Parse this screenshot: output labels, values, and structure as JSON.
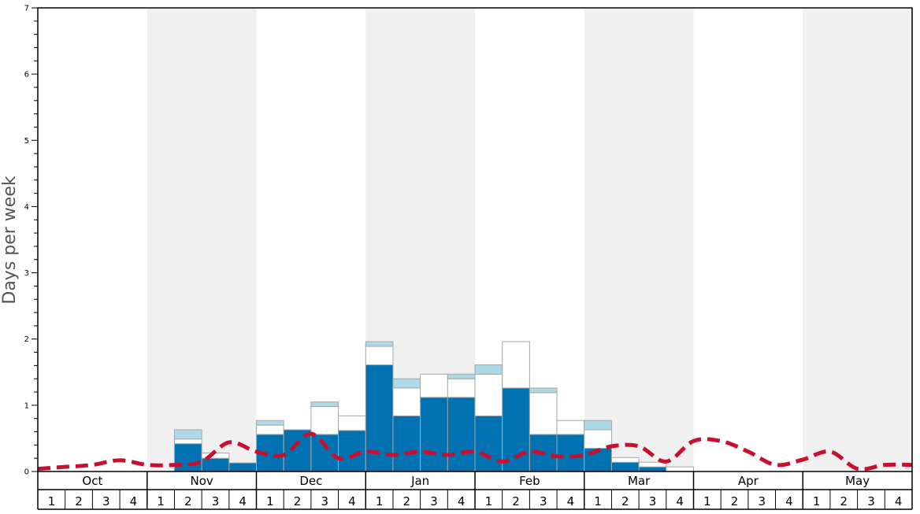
{
  "chart_data": {
    "type": "bar",
    "title": "",
    "ylabel": "Days per week",
    "xlabel": "",
    "ylim": [
      0,
      7
    ],
    "y_ticks": [
      "0",
      "1",
      "2",
      "3",
      "4",
      "5",
      "6",
      "7"
    ],
    "months": [
      "Oct",
      "Nov",
      "Dec",
      "Jan",
      "Feb",
      "Mar",
      "Apr",
      "May"
    ],
    "week_labels": [
      "1",
      "2",
      "3",
      "4"
    ],
    "shaded_months": [
      "Nov",
      "Jan",
      "Mar",
      "May"
    ],
    "colors": {
      "dark_bar": "#0072b2",
      "white_bar": "#ffffff",
      "light_bar": "#add8e6",
      "bar_outline": "#a6a6a6",
      "dashed_line": "#c8102e",
      "shade": "#f0f0f0"
    },
    "stack_order": [
      "dark",
      "white",
      "light"
    ],
    "series": [
      {
        "key": "dark",
        "values": [
          0,
          0,
          0,
          0,
          0,
          0.42,
          0.2,
          0.13,
          0.56,
          0.63,
          0.56,
          0.62,
          1.61,
          0.84,
          1.12,
          1.12,
          0.84,
          1.26,
          0.56,
          0.56,
          0.35,
          0.14,
          0.07,
          0,
          0,
          0,
          0,
          0,
          0,
          0,
          0,
          0
        ]
      },
      {
        "key": "white",
        "values": [
          0,
          0,
          0,
          0,
          0,
          0.07,
          0.08,
          0,
          0.14,
          0,
          0.42,
          0.22,
          0.28,
          0.42,
          0.35,
          0.28,
          0.63,
          0.7,
          0.63,
          0.21,
          0.28,
          0.07,
          0.07,
          0.07,
          0,
          0,
          0,
          0,
          0,
          0,
          0,
          0
        ]
      },
      {
        "key": "light",
        "values": [
          0,
          0,
          0,
          0,
          0,
          0.14,
          0,
          0,
          0.07,
          0,
          0.07,
          0,
          0.07,
          0.14,
          0,
          0.07,
          0.14,
          0,
          0.07,
          0,
          0.14,
          0,
          0,
          0,
          0,
          0,
          0,
          0,
          0,
          0,
          0,
          0
        ]
      }
    ],
    "dashed_line_values": [
      0.04,
      0.07,
      0.1,
      0.17,
      0.1,
      0.1,
      0.15,
      0.44,
      0.3,
      0.25,
      0.57,
      0.2,
      0.3,
      0.25,
      0.3,
      0.25,
      0.3,
      0.15,
      0.3,
      0.23,
      0.25,
      0.38,
      0.38,
      0.15,
      0.46,
      0.46,
      0.3,
      0.1,
      0.18,
      0.3,
      0.04,
      0.1,
      0.1
    ]
  }
}
